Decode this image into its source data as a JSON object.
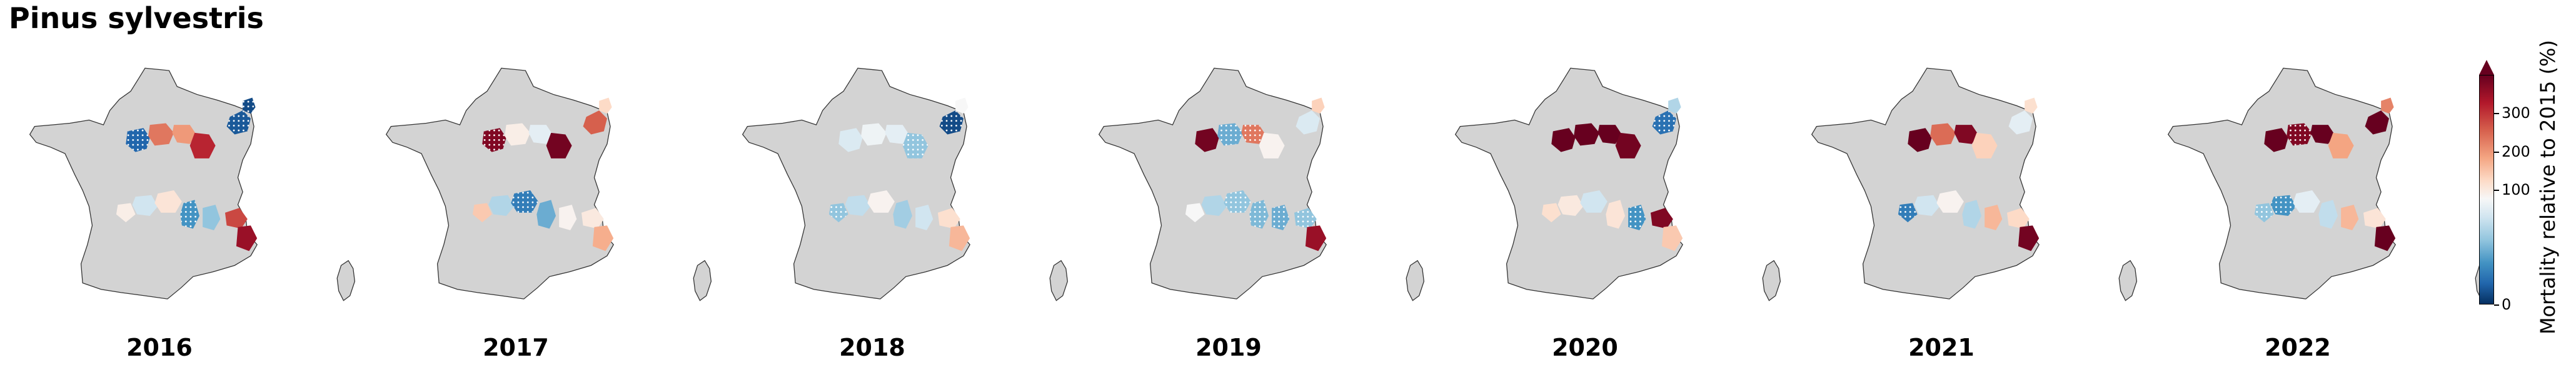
{
  "title": "Pinus sylvestris",
  "colors": {
    "land": "#d3d3d3",
    "outline": "#333333",
    "colormap": "RdBu_r",
    "hatch_on_blue": "#ffffff",
    "hatch_on_red": "#ffffff"
  },
  "colorbar": {
    "label": "Mortality relative to 2015 (%)",
    "ticks": [
      "0",
      "100",
      "200",
      "300"
    ],
    "tick_values": [
      0,
      100,
      200,
      300
    ],
    "range": [
      0,
      400
    ],
    "extend": "max"
  },
  "panels": [
    {
      "year": "2016",
      "regions": [
        {
          "id": "nw1",
          "value": 20,
          "hatched": true
        },
        {
          "id": "nw2",
          "value": 260,
          "hatched": false
        },
        {
          "id": "nc1",
          "value": 230,
          "hatched": false
        },
        {
          "id": "nc2",
          "value": 330,
          "hatched": false
        },
        {
          "id": "ne1",
          "value": 15,
          "hatched": true
        },
        {
          "id": "ne2",
          "value": 10,
          "hatched": true
        },
        {
          "id": "cw1",
          "value": 120,
          "hatched": false
        },
        {
          "id": "cw2",
          "value": 80,
          "hatched": false
        },
        {
          "id": "cc1",
          "value": 140,
          "hatched": false
        },
        {
          "id": "cc2",
          "value": 40,
          "hatched": true
        },
        {
          "id": "ce1",
          "value": 60,
          "hatched": false
        },
        {
          "id": "se1",
          "value": 300,
          "hatched": false
        },
        {
          "id": "se2",
          "value": 360,
          "hatched": false
        }
      ]
    },
    {
      "year": "2017",
      "regions": [
        {
          "id": "nw1",
          "value": 380,
          "hatched": true
        },
        {
          "id": "nw2",
          "value": 120,
          "hatched": false
        },
        {
          "id": "nc1",
          "value": 90,
          "hatched": false
        },
        {
          "id": "nc2",
          "value": 390,
          "hatched": false
        },
        {
          "id": "ne1",
          "value": 280,
          "hatched": false
        },
        {
          "id": "ne2",
          "value": 160,
          "hatched": false
        },
        {
          "id": "cw1",
          "value": 180,
          "hatched": false
        },
        {
          "id": "cw2",
          "value": 70,
          "hatched": false
        },
        {
          "id": "cc1",
          "value": 30,
          "hatched": true
        },
        {
          "id": "cc2",
          "value": 50,
          "hatched": false
        },
        {
          "id": "ce1",
          "value": 110,
          "hatched": false
        },
        {
          "id": "se1",
          "value": 130,
          "hatched": false
        },
        {
          "id": "se2",
          "value": 210,
          "hatched": false
        }
      ]
    },
    {
      "year": "2018",
      "regions": [
        {
          "id": "nw1",
          "value": 85,
          "hatched": false
        },
        {
          "id": "nw2",
          "value": 95,
          "hatched": false
        },
        {
          "id": "nc1",
          "value": 90,
          "hatched": false
        },
        {
          "id": "nc2",
          "value": 60,
          "hatched": true
        },
        {
          "id": "ne1",
          "value": 10,
          "hatched": true
        },
        {
          "id": "ne2",
          "value": 100,
          "hatched": false
        },
        {
          "id": "cw1",
          "value": 60,
          "hatched": true
        },
        {
          "id": "cw2",
          "value": 75,
          "hatched": false
        },
        {
          "id": "cc1",
          "value": 110,
          "hatched": false
        },
        {
          "id": "cc2",
          "value": 65,
          "hatched": false
        },
        {
          "id": "ce1",
          "value": 80,
          "hatched": false
        },
        {
          "id": "se1",
          "value": 150,
          "hatched": false
        },
        {
          "id": "se2",
          "value": 200,
          "hatched": false
        }
      ]
    },
    {
      "year": "2019",
      "regions": [
        {
          "id": "nw1",
          "value": 390,
          "hatched": false
        },
        {
          "id": "nw2",
          "value": 50,
          "hatched": true
        },
        {
          "id": "nc1",
          "value": 260,
          "hatched": true
        },
        {
          "id": "nc2",
          "value": 110,
          "hatched": false
        },
        {
          "id": "ne1",
          "value": 85,
          "hatched": false
        },
        {
          "id": "ne2",
          "value": 170,
          "hatched": false
        },
        {
          "id": "cw1",
          "value": 100,
          "hatched": false
        },
        {
          "id": "cw2",
          "value": 70,
          "hatched": false
        },
        {
          "id": "cc1",
          "value": 60,
          "hatched": true
        },
        {
          "id": "cc2",
          "value": 55,
          "hatched": true
        },
        {
          "id": "ce1",
          "value": 50,
          "hatched": true
        },
        {
          "id": "se1",
          "value": 60,
          "hatched": true
        },
        {
          "id": "se2",
          "value": 360,
          "hatched": false
        }
      ]
    },
    {
      "year": "2020",
      "regions": [
        {
          "id": "nw1",
          "value": 400,
          "hatched": false
        },
        {
          "id": "nw2",
          "value": 400,
          "hatched": false
        },
        {
          "id": "nc1",
          "value": 400,
          "hatched": false
        },
        {
          "id": "nc2",
          "value": 390,
          "hatched": false
        },
        {
          "id": "ne1",
          "value": 25,
          "hatched": true
        },
        {
          "id": "ne2",
          "value": 70,
          "hatched": false
        },
        {
          "id": "cw1",
          "value": 150,
          "hatched": false
        },
        {
          "id": "cw2",
          "value": 130,
          "hatched": false
        },
        {
          "id": "cc1",
          "value": 80,
          "hatched": false
        },
        {
          "id": "cc2",
          "value": 140,
          "hatched": false
        },
        {
          "id": "ce1",
          "value": 40,
          "hatched": true
        },
        {
          "id": "se1",
          "value": 380,
          "hatched": false
        },
        {
          "id": "se2",
          "value": 180,
          "hatched": false
        }
      ]
    },
    {
      "year": "2021",
      "regions": [
        {
          "id": "nw1",
          "value": 400,
          "hatched": false
        },
        {
          "id": "nw2",
          "value": 270,
          "hatched": false
        },
        {
          "id": "nc1",
          "value": 380,
          "hatched": false
        },
        {
          "id": "nc2",
          "value": 170,
          "hatched": false
        },
        {
          "id": "ne1",
          "value": 90,
          "hatched": false
        },
        {
          "id": "ne2",
          "value": 150,
          "hatched": false
        },
        {
          "id": "cw1",
          "value": 30,
          "hatched": true
        },
        {
          "id": "cw2",
          "value": 80,
          "hatched": false
        },
        {
          "id": "cc1",
          "value": 110,
          "hatched": false
        },
        {
          "id": "cc2",
          "value": 70,
          "hatched": false
        },
        {
          "id": "ce1",
          "value": 200,
          "hatched": false
        },
        {
          "id": "se1",
          "value": 160,
          "hatched": false
        },
        {
          "id": "se2",
          "value": 390,
          "hatched": false
        }
      ]
    },
    {
      "year": "2022",
      "regions": [
        {
          "id": "nw1",
          "value": 400,
          "hatched": false
        },
        {
          "id": "nw2",
          "value": 380,
          "hatched": true
        },
        {
          "id": "nc1",
          "value": 400,
          "hatched": false
        },
        {
          "id": "nc2",
          "value": 220,
          "hatched": false
        },
        {
          "id": "ne1",
          "value": 400,
          "hatched": false
        },
        {
          "id": "ne2",
          "value": 250,
          "hatched": false
        },
        {
          "id": "cw1",
          "value": 60,
          "hatched": true
        },
        {
          "id": "cw2",
          "value": 40,
          "hatched": true
        },
        {
          "id": "cc1",
          "value": 90,
          "hatched": false
        },
        {
          "id": "cc2",
          "value": 75,
          "hatched": false
        },
        {
          "id": "ce1",
          "value": 200,
          "hatched": false
        },
        {
          "id": "se1",
          "value": 140,
          "hatched": false
        },
        {
          "id": "se2",
          "value": 400,
          "hatched": false
        }
      ]
    }
  ]
}
